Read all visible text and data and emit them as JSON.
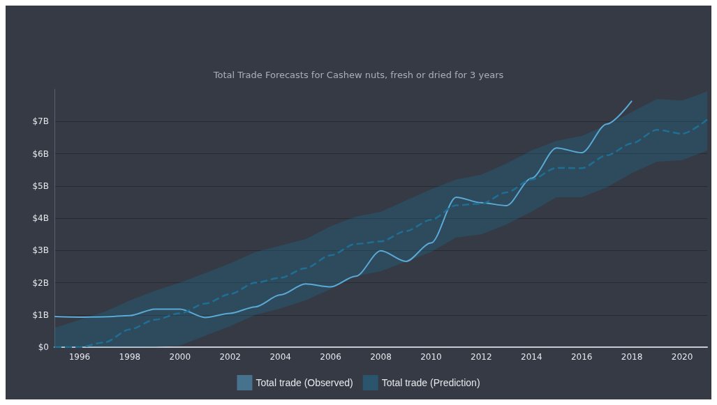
{
  "chart_data": {
    "type": "line",
    "title": "Total Trade Forecasts for Cashew nuts, fresh or dried for 3 years",
    "xlim": [
      1995,
      2021
    ],
    "xticks": [
      1996,
      1998,
      2000,
      2002,
      2004,
      2006,
      2008,
      2010,
      2012,
      2014,
      2016,
      2018,
      2020
    ],
    "ylim": [
      0,
      8
    ],
    "yticks": [
      {
        "value": 0,
        "label": "$0"
      },
      {
        "value": 1,
        "label": "$1B"
      },
      {
        "value": 2,
        "label": "$2B"
      },
      {
        "value": 3,
        "label": "$3B"
      },
      {
        "value": 4,
        "label": "$4B"
      },
      {
        "value": 5,
        "label": "$5B"
      },
      {
        "value": 6,
        "label": "$6B"
      },
      {
        "value": 7,
        "label": "$7B"
      }
    ],
    "grid": "y",
    "legend": "bottom",
    "marker": "none",
    "series": [
      {
        "name": "Total trade (Observed)",
        "color": "#5aa9d6",
        "line_style": "solid",
        "x": [
          1995,
          1996,
          1997,
          1998,
          1999,
          2000,
          2001,
          2002,
          2003,
          2004,
          2005,
          2006,
          2007,
          2008,
          2009,
          2010,
          2011,
          2012,
          2013,
          2014,
          2015,
          2016,
          2017,
          2018
        ],
        "values": [
          0.95,
          0.93,
          0.94,
          0.98,
          1.18,
          1.18,
          0.92,
          1.05,
          1.25,
          1.62,
          1.96,
          1.87,
          2.2,
          2.99,
          2.66,
          3.23,
          4.65,
          4.48,
          4.39,
          5.24,
          6.18,
          6.03,
          6.92,
          7.64
        ]
      },
      {
        "name": "Total trade (Prediction)",
        "color": "#1f6f95",
        "line_style": "dashed",
        "x": [
          1995,
          1996,
          1997,
          1998,
          1999,
          2000,
          2001,
          2002,
          2003,
          2004,
          2005,
          2006,
          2007,
          2008,
          2009,
          2010,
          2011,
          2012,
          2013,
          2014,
          2015,
          2016,
          2017,
          2018,
          2019,
          2020,
          2021
        ],
        "values": [
          0,
          0,
          0.15,
          0.55,
          0.85,
          1.05,
          1.35,
          1.65,
          2.0,
          2.15,
          2.45,
          2.85,
          3.2,
          3.28,
          3.6,
          3.95,
          4.4,
          4.45,
          4.8,
          5.2,
          5.56,
          5.55,
          5.95,
          6.32,
          6.74,
          6.62,
          7.06
        ],
        "lower": [
          0,
          0,
          0,
          0,
          0,
          0.05,
          0.35,
          0.65,
          1.0,
          1.2,
          1.45,
          1.8,
          2.2,
          2.35,
          2.65,
          2.95,
          3.4,
          3.5,
          3.8,
          4.2,
          4.65,
          4.65,
          4.95,
          5.4,
          5.75,
          5.8,
          6.1
        ],
        "upper": [
          0.6,
          0.85,
          1.1,
          1.45,
          1.75,
          2.0,
          2.3,
          2.6,
          2.95,
          3.15,
          3.35,
          3.75,
          4.05,
          4.2,
          4.55,
          4.9,
          5.2,
          5.35,
          5.7,
          6.1,
          6.4,
          6.55,
          6.9,
          7.3,
          7.7,
          7.65,
          7.93
        ]
      }
    ]
  }
}
